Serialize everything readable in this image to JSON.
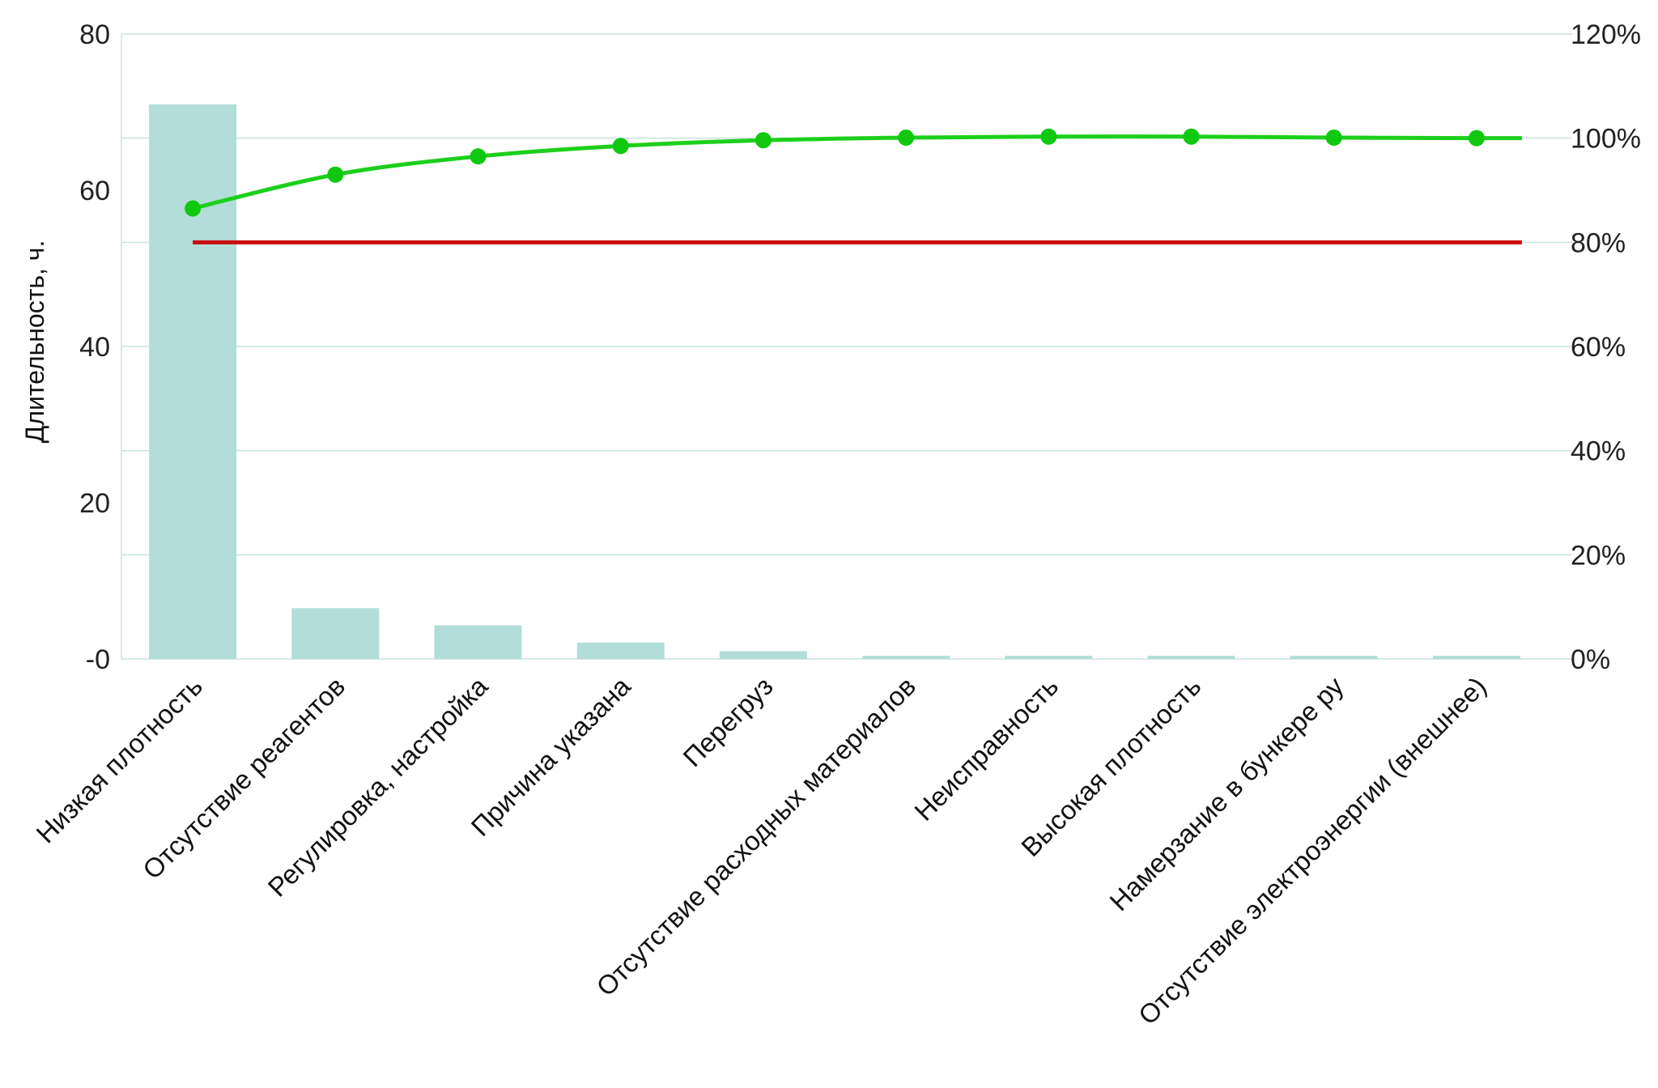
{
  "chart_data": {
    "type": "bar",
    "categories": [
      "Низкая плотность",
      "Отсутствие реагентов",
      "Регулировка, настройка",
      "Причина указана",
      "Перегруз",
      "Отсутствие расходных материалов",
      "Неисправность",
      "Высокая плотность",
      "Намерзание в бункере ру",
      "Отсутствие электроэнергии (внешнее)"
    ],
    "values": [
      71,
      6.5,
      4.3,
      2.1,
      1.0,
      0.4,
      0.4,
      0.4,
      0.4,
      0.4
    ],
    "ylabel": "Длительность, ч.",
    "ylim": [
      0,
      80
    ],
    "yticks": [
      0,
      20,
      40,
      60,
      80
    ],
    "ytick_labels": [
      "-0",
      "20",
      "40",
      "60",
      "80"
    ],
    "y2lim": [
      0,
      120
    ],
    "y2ticks": [
      0,
      20,
      40,
      60,
      80,
      100,
      120
    ],
    "y2tick_labels": [
      "0%",
      "20%",
      "40%",
      "60%",
      "80%",
      "100%",
      "120%"
    ],
    "cumulative_percent": [
      86.5,
      93,
      96.5,
      98.5,
      99.6,
      100.1,
      100.3,
      100.3,
      100.1,
      100
    ],
    "threshold_percent": 80,
    "grid": true,
    "colors": {
      "bars": "#b3ddd9",
      "cumulative_line": "#1ccf1c",
      "cumulative_points": "#0fc80f",
      "threshold_line": "#c80d0d",
      "grid": "#c7e3e0"
    }
  }
}
